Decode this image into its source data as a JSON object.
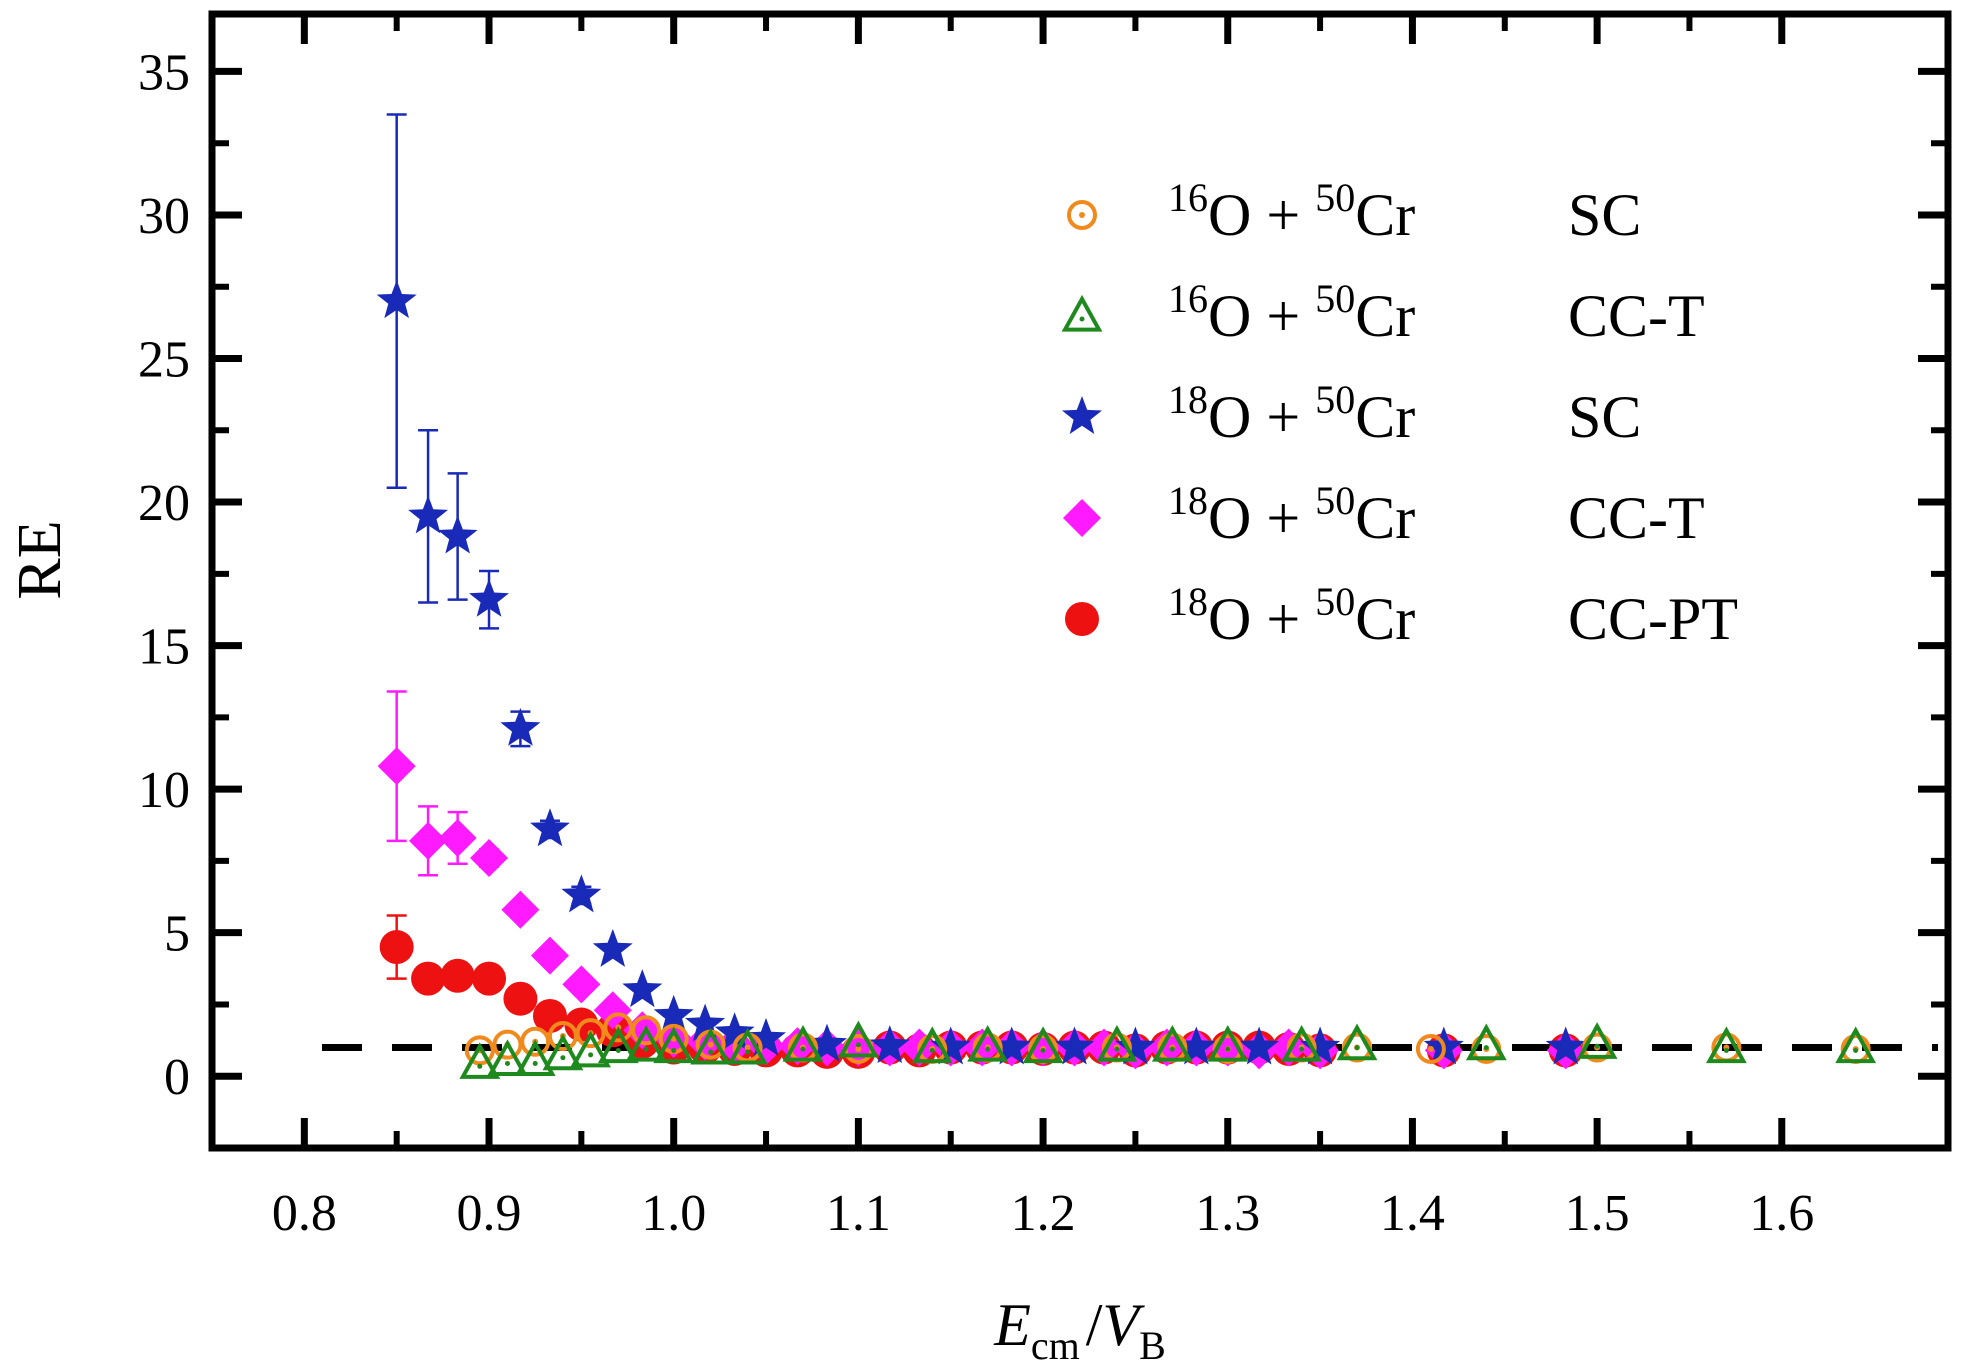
{
  "chart_data": {
    "type": "scatter",
    "xlabel_main": "E",
    "xlabel_sub": "cm",
    "xlabel_sep": "/",
    "xlabel_main2": "V",
    "xlabel_sub2": "B",
    "ylabel": "RE",
    "xlim": [
      0.75,
      1.69
    ],
    "ylim": [
      -2.5,
      37
    ],
    "xticks": [
      0.8,
      0.9,
      1.0,
      1.1,
      1.2,
      1.3,
      1.4,
      1.5,
      1.6
    ],
    "xtick_labels": [
      "0.8",
      "0.9",
      "1.0",
      "1.1",
      "1.2",
      "1.3",
      "1.4",
      "1.5",
      "1.6"
    ],
    "yticks": [
      0,
      5,
      10,
      15,
      20,
      25,
      30,
      35
    ],
    "ytick_labels": [
      "0",
      "5",
      "10",
      "15",
      "20",
      "25",
      "30",
      "35"
    ],
    "reference_line": {
      "y": 1,
      "style": "dashed"
    },
    "legend_position": "top-right",
    "series": [
      {
        "name": "SC",
        "legend_label": {
          "projectile_mass": "16",
          "projectile": "O",
          "plus": "+",
          "target_mass": "50",
          "target": "Cr",
          "model": "SC"
        },
        "marker": "circle-dot-open",
        "color": "#f08a1c",
        "x": [
          0.895,
          0.91,
          0.925,
          0.94,
          0.955,
          0.97,
          0.985,
          1.0,
          1.02,
          1.04,
          1.07,
          1.1,
          1.14,
          1.17,
          1.2,
          1.24,
          1.27,
          1.3,
          1.34,
          1.37,
          1.41,
          1.44,
          1.5,
          1.57,
          1.64
        ],
        "y": [
          0.9,
          1.1,
          1.2,
          1.4,
          1.5,
          1.7,
          1.6,
          1.3,
          1.1,
          1.0,
          1.0,
          0.95,
          0.95,
          1.0,
          0.95,
          1.0,
          1.0,
          0.95,
          1.0,
          1.0,
          0.95,
          0.95,
          1.0,
          1.0,
          0.95
        ]
      },
      {
        "name": "CC-T",
        "legend_label": {
          "projectile_mass": "16",
          "projectile": "O",
          "plus": "+",
          "target_mass": "50",
          "target": "Cr",
          "model": "CC-T"
        },
        "marker": "triangle-dot-open",
        "color": "#1e8a1e",
        "x": [
          0.895,
          0.91,
          0.925,
          0.94,
          0.955,
          0.97,
          0.985,
          1.0,
          1.02,
          1.04,
          1.07,
          1.1,
          1.14,
          1.17,
          1.2,
          1.24,
          1.27,
          1.3,
          1.34,
          1.37,
          1.44,
          1.5,
          1.57,
          1.64
        ],
        "y": [
          0.45,
          0.55,
          0.55,
          0.75,
          0.85,
          1.0,
          1.05,
          1.0,
          0.95,
          0.95,
          1.05,
          1.2,
          1.0,
          1.05,
          1.0,
          1.05,
          1.05,
          1.05,
          1.05,
          1.1,
          1.1,
          1.15,
          1.0,
          1.0
        ]
      },
      {
        "name": "SC",
        "legend_label": {
          "projectile_mass": "18",
          "projectile": "O",
          "plus": "+",
          "target_mass": "50",
          "target": "Cr",
          "model": "SC"
        },
        "marker": "star-filled",
        "color": "#1a2ab8",
        "x": [
          0.85,
          0.867,
          0.883,
          0.9,
          0.917,
          0.933,
          0.95,
          0.967,
          0.983,
          1.0,
          1.017,
          1.033,
          1.05,
          1.083,
          1.117,
          1.15,
          1.183,
          1.217,
          1.25,
          1.283,
          1.317,
          1.35,
          1.417,
          1.483
        ],
        "y": [
          27.0,
          19.5,
          18.8,
          16.6,
          12.1,
          8.6,
          6.3,
          4.4,
          3.0,
          2.1,
          1.8,
          1.5,
          1.3,
          1.1,
          1.05,
          1.0,
          1.0,
          1.0,
          1.0,
          1.0,
          1.0,
          1.0,
          1.0,
          1.0
        ],
        "y_err": [
          6.5,
          3.0,
          2.2,
          1.0,
          0.6,
          0.3,
          0.3,
          0.2,
          0.2,
          0.15,
          0.1,
          0.1,
          0.1,
          0.1,
          0.1,
          0.1,
          0.1,
          0.1,
          0.1,
          0.1,
          0.1,
          0.1,
          0.1,
          0.1
        ]
      },
      {
        "name": "CC-T",
        "legend_label": {
          "projectile_mass": "18",
          "projectile": "O",
          "plus": "+",
          "target_mass": "50",
          "target": "Cr",
          "model": "CC-T"
        },
        "marker": "diamond-filled",
        "color": "#ff1aff",
        "x": [
          0.85,
          0.867,
          0.883,
          0.9,
          0.917,
          0.933,
          0.95,
          0.967,
          0.983,
          1.0,
          1.017,
          1.033,
          1.05,
          1.067,
          1.083,
          1.1,
          1.117,
          1.133,
          1.15,
          1.167,
          1.183,
          1.2,
          1.217,
          1.233,
          1.25,
          1.267,
          1.283,
          1.3,
          1.317,
          1.333,
          1.35,
          1.417,
          1.483
        ],
        "y": [
          10.8,
          8.2,
          8.3,
          7.6,
          5.8,
          4.2,
          3.2,
          2.3,
          1.6,
          1.3,
          1.2,
          1.1,
          1.05,
          1.05,
          1.0,
          1.0,
          1.0,
          1.0,
          1.0,
          1.0,
          1.0,
          1.0,
          1.0,
          1.0,
          0.9,
          1.0,
          1.0,
          1.0,
          0.9,
          1.0,
          0.9,
          0.9,
          0.9
        ],
        "y_err": [
          2.6,
          1.2,
          0.9,
          0.3,
          0.2,
          0.2,
          0.2,
          0.1,
          0.1,
          0.1,
          0.1,
          0.1,
          0.1,
          0.1,
          0.1,
          0.1,
          0.1,
          0.1,
          0.1,
          0.1,
          0.1,
          0.1,
          0.1,
          0.1,
          0.1,
          0.1,
          0.1,
          0.1,
          0.1,
          0.1,
          0.1,
          0.1,
          0.1
        ]
      },
      {
        "name": "CC-PT",
        "legend_label": {
          "projectile_mass": "18",
          "projectile": "O",
          "plus": "+",
          "target_mass": "50",
          "target": "Cr",
          "model": "CC-PT"
        },
        "marker": "circle-filled",
        "color": "#ee1111",
        "x": [
          0.85,
          0.867,
          0.883,
          0.9,
          0.917,
          0.933,
          0.95,
          0.967,
          0.983,
          1.0,
          1.017,
          1.033,
          1.05,
          1.067,
          1.083,
          1.1,
          1.117,
          1.133,
          1.15,
          1.167,
          1.183,
          1.2,
          1.217,
          1.233,
          1.25,
          1.267,
          1.283,
          1.3,
          1.317,
          1.333,
          1.35,
          1.417,
          1.483
        ],
        "y": [
          4.5,
          3.4,
          3.5,
          3.4,
          2.7,
          2.1,
          1.8,
          1.6,
          1.2,
          1.0,
          1.0,
          0.95,
          0.9,
          0.9,
          0.85,
          0.85,
          1.0,
          0.9,
          1.0,
          1.0,
          1.0,
          0.95,
          1.0,
          1.0,
          0.9,
          1.0,
          1.0,
          1.0,
          1.0,
          0.95,
          0.9,
          0.9,
          0.9
        ],
        "y_err": [
          1.1,
          0.4,
          0.3,
          0.2,
          0.2,
          0.2,
          0.15,
          0.1,
          0.1,
          0.1,
          0.1,
          0.1,
          0.1,
          0.1,
          0.1,
          0.1,
          0.1,
          0.1,
          0.1,
          0.1,
          0.1,
          0.1,
          0.1,
          0.1,
          0.1,
          0.1,
          0.1,
          0.1,
          0.1,
          0.1,
          0.1,
          0.1,
          0.1
        ]
      }
    ]
  }
}
